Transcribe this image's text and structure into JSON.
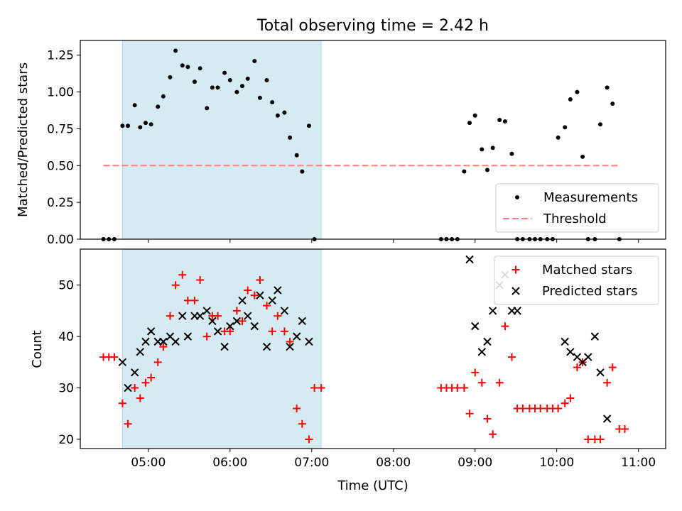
{
  "chart_data": [
    {
      "type": "scatter",
      "title": "Total observing time = 2.42 h",
      "xlabel": "",
      "ylabel": "Matched/Predicted stars",
      "ylim": [
        0,
        1.35
      ],
      "yticks": [
        0,
        0.25,
        0.5,
        0.75,
        1.0,
        1.25
      ],
      "ytick_labels": [
        "0.00",
        "0.25",
        "0.50",
        "0.75",
        "1.00",
        "1.25"
      ],
      "xlim": [
        "04:10",
        "11:20"
      ],
      "legend_position": "lower-right",
      "highlight_span": {
        "start": "04:41",
        "end": "07:07",
        "color": "#d6ebf1"
      },
      "series": [
        {
          "name": "Measurements",
          "marker": "dot",
          "color": "#000000",
          "points": [
            [
              "04:27",
              0
            ],
            [
              "04:31",
              0
            ],
            [
              "04:35",
              0
            ],
            [
              "04:41",
              0.77
            ],
            [
              "04:45",
              0.77
            ],
            [
              "04:50",
              0.91
            ],
            [
              "04:54",
              0.76
            ],
            [
              "04:58",
              0.79
            ],
            [
              "05:02",
              0.78
            ],
            [
              "05:07",
              0.9
            ],
            [
              "05:11",
              0.97
            ],
            [
              "05:16",
              1.1
            ],
            [
              "05:20",
              1.28
            ],
            [
              "05:25",
              1.18
            ],
            [
              "05:29",
              1.17
            ],
            [
              "05:34",
              1.07
            ],
            [
              "05:38",
              1.16
            ],
            [
              "05:43",
              0.89
            ],
            [
              "05:47",
              1.03
            ],
            [
              "05:51",
              1.03
            ],
            [
              "05:56",
              1.13
            ],
            [
              "06:00",
              1.08
            ],
            [
              "06:05",
              1.0
            ],
            [
              "06:09",
              1.04
            ],
            [
              "06:13",
              1.09
            ],
            [
              "06:18",
              1.21
            ],
            [
              "06:22",
              0.96
            ],
            [
              "06:27",
              1.08
            ],
            [
              "06:31",
              0.93
            ],
            [
              "06:35",
              0.84
            ],
            [
              "06:40",
              0.86
            ],
            [
              "06:44",
              0.69
            ],
            [
              "06:49",
              0.57
            ],
            [
              "06:53",
              0.46
            ],
            [
              "06:58",
              0.77
            ],
            [
              "07:02",
              0
            ],
            [
              "08:35",
              0
            ],
            [
              "08:39",
              0
            ],
            [
              "08:43",
              0
            ],
            [
              "08:47",
              0
            ],
            [
              "08:52",
              0.46
            ],
            [
              "08:56",
              0.79
            ],
            [
              "09:00",
              0.84
            ],
            [
              "09:05",
              0.61
            ],
            [
              "09:09",
              0.47
            ],
            [
              "09:13",
              0.62
            ],
            [
              "09:18",
              0.81
            ],
            [
              "09:22",
              0.8
            ],
            [
              "09:27",
              0.58
            ],
            [
              "09:31",
              0
            ],
            [
              "09:35",
              0
            ],
            [
              "09:40",
              0
            ],
            [
              "09:44",
              0
            ],
            [
              "09:48",
              0
            ],
            [
              "09:53",
              0
            ],
            [
              "09:57",
              0
            ],
            [
              "10:01",
              0.69
            ],
            [
              "10:06",
              0.76
            ],
            [
              "10:10",
              0.95
            ],
            [
              "10:15",
              1.0
            ],
            [
              "10:19",
              0.56
            ],
            [
              "10:23",
              0
            ],
            [
              "10:28",
              0
            ],
            [
              "10:32",
              0.78
            ],
            [
              "10:37",
              1.03
            ],
            [
              "10:41",
              0.92
            ],
            [
              "10:46",
              0
            ]
          ]
        },
        {
          "name": "Threshold",
          "style": "dashed",
          "color": "#ff7f7f",
          "x": [
            "04:27",
            "10:46"
          ],
          "values": [
            0.5,
            0.5
          ]
        }
      ]
    },
    {
      "type": "scatter",
      "title": "",
      "xlabel": "Time (UTC)",
      "ylabel": "Count",
      "ylim": [
        18.2,
        57
      ],
      "yticks": [
        20,
        30,
        40,
        50
      ],
      "ytick_labels": [
        "20",
        "30",
        "40",
        "50"
      ],
      "xlim": [
        "04:10",
        "11:20"
      ],
      "xticks": [
        "05:00",
        "06:00",
        "07:00",
        "08:00",
        "09:00",
        "10:00",
        "11:00"
      ],
      "legend_position": "upper-right",
      "highlight_span": {
        "start": "04:41",
        "end": "07:07",
        "color": "#d6ebf1"
      },
      "series": [
        {
          "name": "Matched stars",
          "marker": "plus",
          "color": "#ff0000",
          "points": [
            [
              "04:27",
              36
            ],
            [
              "04:31",
              36
            ],
            [
              "04:35",
              36
            ],
            [
              "04:41",
              27
            ],
            [
              "04:45",
              23
            ],
            [
              "04:50",
              30
            ],
            [
              "04:54",
              28
            ],
            [
              "04:58",
              31
            ],
            [
              "05:02",
              32
            ],
            [
              "05:07",
              35
            ],
            [
              "05:11",
              38
            ],
            [
              "05:16",
              44
            ],
            [
              "05:20",
              50
            ],
            [
              "05:25",
              52
            ],
            [
              "05:29",
              47
            ],
            [
              "05:34",
              47
            ],
            [
              "05:38",
              51
            ],
            [
              "05:43",
              40
            ],
            [
              "05:47",
              44
            ],
            [
              "05:51",
              44
            ],
            [
              "05:56",
              41
            ],
            [
              "06:00",
              41
            ],
            [
              "06:05",
              45
            ],
            [
              "06:09",
              43
            ],
            [
              "06:13",
              49
            ],
            [
              "06:18",
              48
            ],
            [
              "06:22",
              51
            ],
            [
              "06:27",
              46
            ],
            [
              "06:31",
              41
            ],
            [
              "06:35",
              44
            ],
            [
              "06:40",
              41
            ],
            [
              "06:44",
              39
            ],
            [
              "06:49",
              26
            ],
            [
              "06:53",
              23
            ],
            [
              "06:58",
              20
            ],
            [
              "07:02",
              30
            ],
            [
              "07:07",
              30
            ],
            [
              "08:35",
              30
            ],
            [
              "08:39",
              30
            ],
            [
              "08:43",
              30
            ],
            [
              "08:47",
              30
            ],
            [
              "08:52",
              30
            ],
            [
              "08:56",
              25
            ],
            [
              "09:00",
              33
            ],
            [
              "09:05",
              31
            ],
            [
              "09:09",
              24
            ],
            [
              "09:13",
              21
            ],
            [
              "09:18",
              31
            ],
            [
              "09:22",
              42
            ],
            [
              "09:27",
              36
            ],
            [
              "09:31",
              26
            ],
            [
              "09:35",
              26
            ],
            [
              "09:40",
              26
            ],
            [
              "09:44",
              26
            ],
            [
              "09:48",
              26
            ],
            [
              "09:53",
              26
            ],
            [
              "09:57",
              26
            ],
            [
              "10:01",
              26
            ],
            [
              "10:06",
              27
            ],
            [
              "10:10",
              28
            ],
            [
              "10:15",
              34
            ],
            [
              "10:19",
              35
            ],
            [
              "10:23",
              20
            ],
            [
              "10:28",
              20
            ],
            [
              "10:32",
              20
            ],
            [
              "10:37",
              31
            ],
            [
              "10:41",
              34
            ],
            [
              "10:46",
              22
            ],
            [
              "10:50",
              22
            ]
          ]
        },
        {
          "name": "Predicted stars",
          "marker": "x",
          "color": "#000000",
          "points": [
            [
              "04:41",
              35
            ],
            [
              "04:45",
              30
            ],
            [
              "04:50",
              33
            ],
            [
              "04:54",
              37
            ],
            [
              "04:58",
              39
            ],
            [
              "05:02",
              41
            ],
            [
              "05:07",
              39
            ],
            [
              "05:11",
              39
            ],
            [
              "05:16",
              40
            ],
            [
              "05:20",
              39
            ],
            [
              "05:25",
              44
            ],
            [
              "05:29",
              40
            ],
            [
              "05:34",
              44
            ],
            [
              "05:38",
              44
            ],
            [
              "05:43",
              45
            ],
            [
              "05:47",
              43
            ],
            [
              "05:51",
              41
            ],
            [
              "05:56",
              38
            ],
            [
              "06:00",
              42
            ],
            [
              "06:05",
              43
            ],
            [
              "06:09",
              47
            ],
            [
              "06:13",
              44
            ],
            [
              "06:18",
              42
            ],
            [
              "06:22",
              48
            ],
            [
              "06:27",
              38
            ],
            [
              "06:31",
              47
            ],
            [
              "06:35",
              49
            ],
            [
              "06:40",
              45
            ],
            [
              "06:44",
              38
            ],
            [
              "06:49",
              40
            ],
            [
              "06:53",
              43
            ],
            [
              "06:58",
              39
            ],
            [
              "08:56",
              55
            ],
            [
              "09:00",
              42
            ],
            [
              "09:05",
              37
            ],
            [
              "09:09",
              39
            ],
            [
              "09:13",
              45
            ],
            [
              "09:18",
              50
            ],
            [
              "09:22",
              52
            ],
            [
              "09:27",
              45
            ],
            [
              "09:31",
              45
            ],
            [
              "10:06",
              39
            ],
            [
              "10:10",
              37
            ],
            [
              "10:15",
              36
            ],
            [
              "10:19",
              35
            ],
            [
              "10:23",
              36
            ],
            [
              "10:28",
              40
            ],
            [
              "10:32",
              33
            ],
            [
              "10:37",
              24
            ]
          ]
        }
      ]
    }
  ]
}
